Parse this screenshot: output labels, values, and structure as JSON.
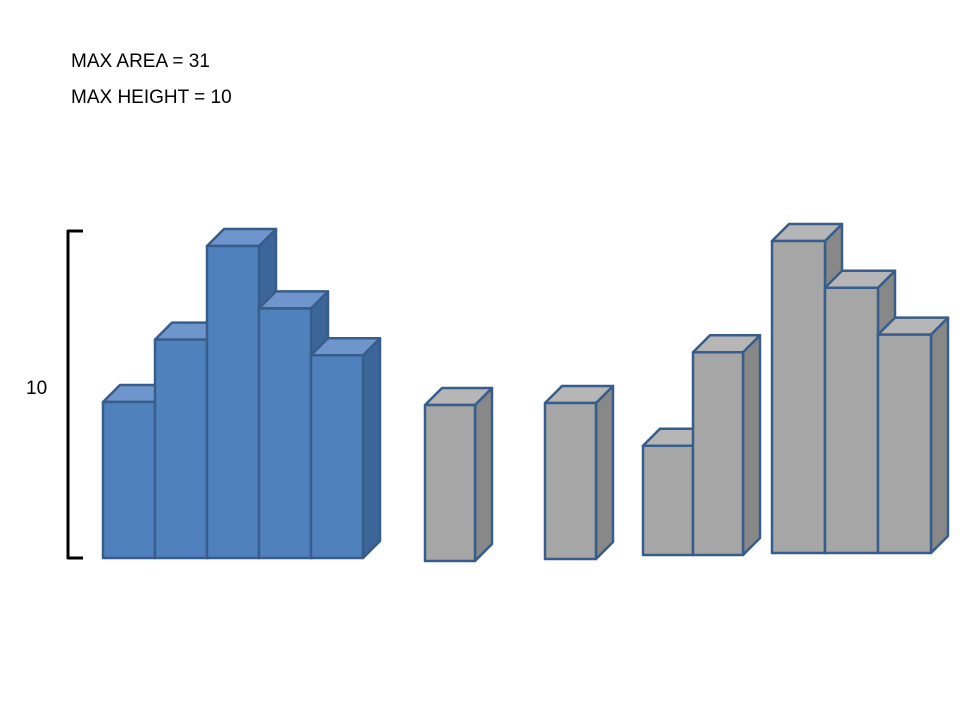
{
  "stats": {
    "max_area_text": "MAX AREA = 31",
    "max_height_text": "MAX HEIGHT = 10"
  },
  "scale": {
    "label": "10",
    "value": 10
  },
  "colors": {
    "blue_face": "#4f81bd",
    "blue_top": "#6f96cc",
    "blue_side": "#3c659a",
    "gray_face": "#a6a6a6",
    "gray_top": "#b6b6b6",
    "gray_side": "#888888",
    "outline": "#385d8a",
    "bracket": "#000000"
  },
  "groups": [
    {
      "name": "highlighted-group",
      "color": "blue",
      "heights": [
        5,
        7,
        10,
        8,
        6.5
      ]
    },
    {
      "name": "single-group-1",
      "color": "gray",
      "heights": [
        5
      ]
    },
    {
      "name": "single-group-2",
      "color": "gray",
      "heights": [
        5
      ]
    },
    {
      "name": "pair-group",
      "color": "gray",
      "heights": [
        3.5,
        6.5
      ]
    },
    {
      "name": "triple-group",
      "color": "gray",
      "heights": [
        10,
        8.5,
        7
      ]
    }
  ]
}
